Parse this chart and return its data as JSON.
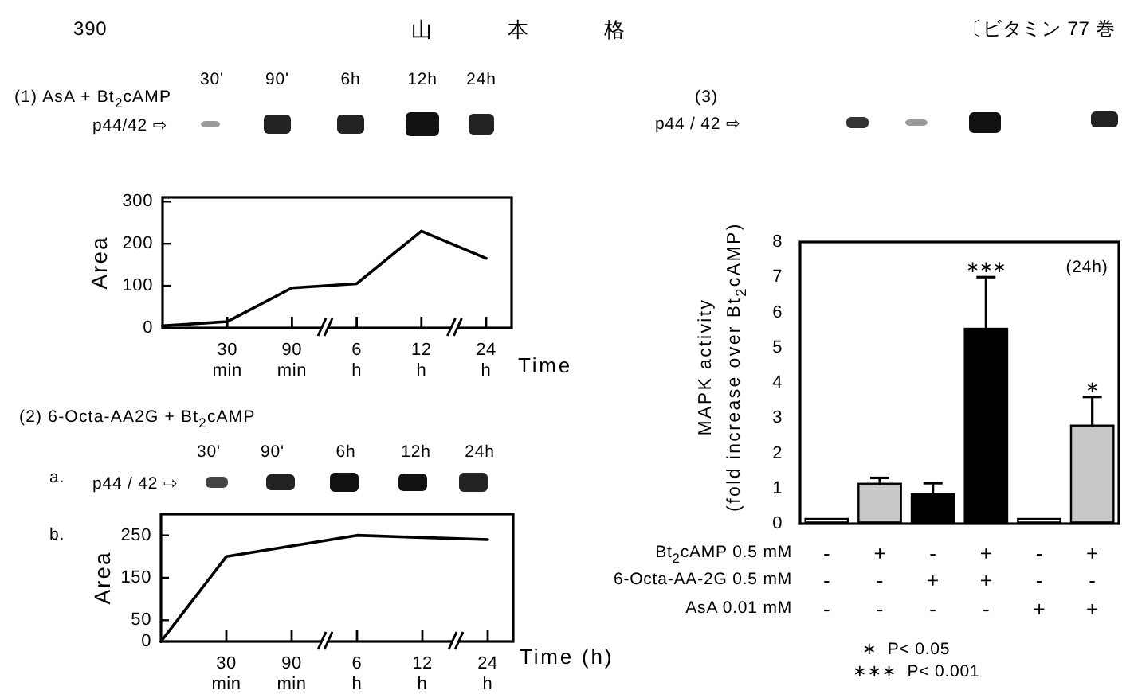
{
  "chart_data": [
    {
      "type": "other",
      "annotations": [
        "390",
        "山 本 格",
        "〔ビタミン 77 巻"
      ]
    },
    {
      "type": "line",
      "title": "(1) AsA + Bt$_{2}$cAMP",
      "xlabel": "Time",
      "ylabel": "Area",
      "categories": [
        null,
        "30 min",
        "90 min",
        "6 h",
        "12 h",
        "24 h"
      ],
      "values": [
        5,
        15,
        95,
        105,
        230,
        165
      ],
      "color": "#000000",
      "ylim": [
        0,
        310
      ],
      "yticks": [
        0,
        100,
        200,
        300
      ],
      "annotations": [
        "30'",
        "90'",
        "6h",
        "12h",
        "24h",
        "p44/42 ⇨"
      ]
    },
    {
      "type": "line",
      "title": "(2) 6-Octa-AA2G + Bt$_{2}$cAMP",
      "xlabel": "Time (h)",
      "ylabel": "Area",
      "categories": [
        null,
        "30 min",
        "90 min",
        "6 h",
        "12 h",
        "24 h"
      ],
      "values": [
        0,
        200,
        225,
        250,
        245,
        240
      ],
      "color": "#000000",
      "ylim": [
        0,
        300
      ],
      "yticks": [
        0,
        50,
        150,
        250
      ],
      "annotations": [
        "a.",
        "b.",
        "30'",
        "90'",
        "6h",
        "12h",
        "24h",
        "p44 / 42 ⇨"
      ]
    },
    {
      "type": "bar",
      "title": "(3)",
      "ylabel": "MAPK activity\n(fold increase over Bt$_{2}$cAMP)",
      "categories": [
        "- - -",
        "+ - -",
        "- + -",
        "+ + -",
        "- - +",
        "+ - +"
      ],
      "values": [
        0.1,
        1.1,
        0.8,
        5.5,
        0.1,
        2.75
      ],
      "colors": [
        "#ffffff",
        "#c8c8c8",
        "#000000",
        "#000000",
        "#ffffff",
        "#c8c8c8"
      ],
      "errors": [
        null,
        [
          1.1,
          1.3
        ],
        [
          0.8,
          1.15
        ],
        [
          5.5,
          7.0
        ],
        null,
        [
          2.75,
          3.6
        ]
      ],
      "ylim": [
        0,
        8
      ],
      "yticks": [
        0,
        1,
        2,
        3,
        4,
        5,
        6,
        7,
        8
      ],
      "annotations": [
        "p44 / 42 ⇨",
        "(24h)",
        {
          "text": "∗∗∗",
          "x": "+ + -",
          "y": 7.0
        },
        {
          "text": "∗",
          "x": "+ - +",
          "y": 3.6
        },
        "Bt$_{2}$cAMP 0.5 mM",
        "6-Octa-AA-2G 0.5 mM",
        "AsA 0.01 mM",
        "∗  P< 0.05",
        "∗∗∗  P< 0.001"
      ]
    }
  ]
}
